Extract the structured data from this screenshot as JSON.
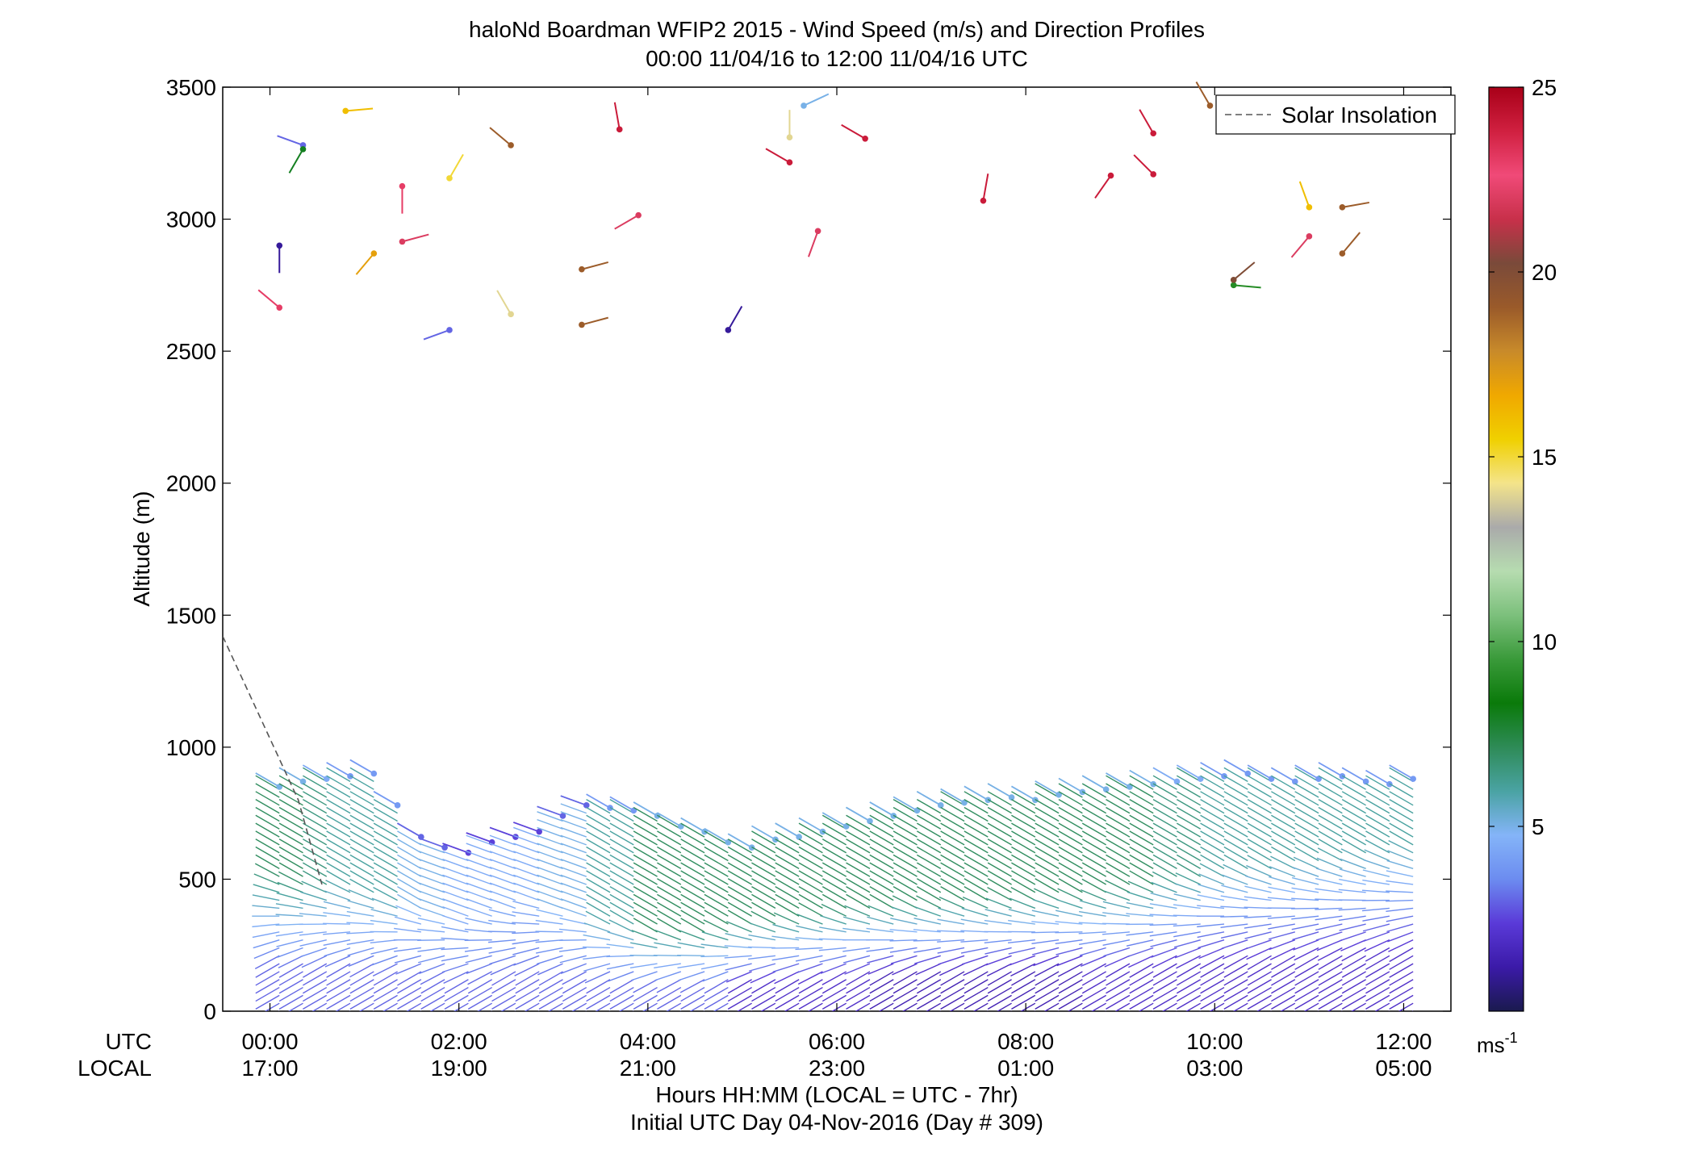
{
  "chart_data": {
    "type": "wind-barb-profile",
    "title": "haloNd Boardman WFIP2 2015 - Wind Speed (m/s) and Direction Profiles",
    "subtitle": "00:00 11/04/16 to 12:00 11/04/16  UTC",
    "ylabel": "Altitude (m)",
    "xlabel": "Hours HH:MM  (LOCAL = UTC - 7hr)",
    "footer": "Initial UTC Day 04-Nov-2016 (Day # 309)",
    "row_labels": {
      "utc": "UTC",
      "local": "LOCAL"
    },
    "xlim_hours": [
      -0.5,
      12.5
    ],
    "ylim": [
      0,
      3500
    ],
    "y_ticks": [
      "0",
      "500",
      "1000",
      "1500",
      "2000",
      "2500",
      "3000",
      "3500"
    ],
    "y_tick_values": [
      0,
      500,
      1000,
      1500,
      2000,
      2500,
      3000,
      3500
    ],
    "x_ticks_utc": [
      "00:00",
      "02:00",
      "04:00",
      "06:00",
      "08:00",
      "10:00",
      "12:00"
    ],
    "x_ticks_local": [
      "17:00",
      "19:00",
      "21:00",
      "23:00",
      "01:00",
      "03:00",
      "05:00"
    ],
    "x_tick_hours": [
      0,
      2,
      4,
      6,
      8,
      10,
      12
    ],
    "legend": {
      "label": "Solar Insolation",
      "position": "top-right"
    },
    "solar_insolation": {
      "x": [
        -0.5,
        0.3,
        0.55
      ],
      "y": [
        1420,
        800,
        480
      ]
    },
    "colorbar": {
      "min": 0,
      "max": 25,
      "ticks": [
        "5",
        "10",
        "15",
        "20",
        "25"
      ],
      "tick_values": [
        5,
        10,
        15,
        20,
        25
      ],
      "unit_label": "ms",
      "unit_exponent": "-1",
      "colors": [
        "#1a1a4e",
        "#3b1aa8",
        "#5a3ad8",
        "#6c8cf0",
        "#84b4f8",
        "#4aa3a3",
        "#2e8b57",
        "#0a7a0a",
        "#3a9a3a",
        "#7cc07c",
        "#b6dcb0",
        "#aaaaaa",
        "#f4e48a",
        "#f0d000",
        "#f0a800",
        "#c88a2a",
        "#9a5a2a",
        "#7a4a3a",
        "#c8304a",
        "#f04a78",
        "#d02040",
        "#a80018"
      ]
    },
    "profiles": {
      "start_hour": 0.1,
      "step_hour": 0.25,
      "count": 49,
      "level_step_m": 30,
      "tops_m": [
        850,
        870,
        880,
        890,
        900,
        780,
        660,
        620,
        600,
        640,
        660,
        680,
        740,
        780,
        770,
        760,
        740,
        700,
        680,
        640,
        620,
        650,
        660,
        680,
        700,
        720,
        740,
        760,
        780,
        790,
        800,
        810,
        800,
        820,
        830,
        840,
        850,
        860,
        870,
        880,
        890,
        900,
        880,
        870,
        880,
        890,
        870,
        860,
        880
      ],
      "low_speed": [
        3,
        3,
        3,
        3,
        3,
        3,
        3,
        3,
        3,
        3,
        3,
        3,
        3,
        3,
        3,
        3,
        3,
        3,
        3,
        3,
        2,
        2,
        2,
        2,
        2,
        2,
        1.5,
        1.5,
        1.5,
        1.5,
        1.5,
        1.5,
        1.5,
        1.5,
        1.5,
        2,
        2,
        2,
        2,
        2,
        2,
        2,
        2,
        2,
        2,
        2,
        2,
        2,
        2
      ],
      "transition_m": [
        400,
        380,
        370,
        360,
        350,
        330,
        300,
        280,
        260,
        280,
        300,
        320,
        300,
        280,
        260,
        240,
        230,
        230,
        230,
        240,
        250,
        260,
        270,
        280,
        290,
        300,
        300,
        310,
        310,
        320,
        320,
        330,
        330,
        340,
        340,
        350,
        360,
        370,
        380,
        390,
        400,
        410,
        420,
        430,
        440,
        450,
        460,
        470,
        480
      ],
      "upper_speed": [
        7,
        7,
        6.5,
        6,
        6,
        6,
        5,
        5,
        4.5,
        4.5,
        4.5,
        4.5,
        5,
        5,
        6,
        6,
        7,
        7,
        7,
        7,
        7,
        7,
        7,
        7,
        7,
        7,
        7,
        7,
        7,
        7,
        7,
        7,
        7,
        7,
        7,
        7,
        7,
        7,
        6.5,
        6.5,
        6,
        6,
        6,
        6,
        6,
        6,
        6,
        6,
        6
      ],
      "upper_direction_deg": [
        300,
        300,
        300,
        300,
        300,
        300,
        300,
        290,
        290,
        290,
        290,
        290,
        290,
        290,
        300,
        300,
        300,
        300,
        300,
        300,
        300,
        300,
        300,
        300,
        300,
        300,
        300,
        300,
        300,
        300,
        300,
        300,
        300,
        300,
        300,
        300,
        300,
        300,
        300,
        300,
        300,
        300,
        300,
        300,
        300,
        300,
        300,
        300,
        300
      ],
      "low_direction_deg": [
        240,
        240,
        240,
        240,
        240,
        240,
        240,
        240,
        240,
        240,
        240,
        240,
        240,
        240,
        240,
        240,
        240,
        240,
        240,
        240,
        240,
        240,
        240,
        240,
        240,
        240,
        240,
        240,
        240,
        240,
        240,
        240,
        240,
        240,
        240,
        240,
        240,
        240,
        240,
        240,
        240,
        240,
        240,
        240,
        240,
        240,
        240,
        240,
        240
      ]
    },
    "high_barbs": [
      {
        "hour": 0.1,
        "alt": 2900,
        "speed": 1,
        "dir": 180
      },
      {
        "hour": 0.1,
        "alt": 2665,
        "speed": 23,
        "dir": 310
      },
      {
        "hour": 0.35,
        "alt": 3280,
        "speed": 3,
        "dir": 290
      },
      {
        "hour": 0.35,
        "alt": 3265,
        "speed": 8,
        "dir": 210
      },
      {
        "hour": 0.8,
        "alt": 3410,
        "speed": 16,
        "dir": 85
      },
      {
        "hour": 1.4,
        "alt": 3125,
        "speed": 23,
        "dir": 180
      },
      {
        "hour": 1.4,
        "alt": 2915,
        "speed": 22,
        "dir": 75
      },
      {
        "hour": 1.1,
        "alt": 2870,
        "speed": 17,
        "dir": 220
      },
      {
        "hour": 1.9,
        "alt": 3155,
        "speed": 15,
        "dir": 30
      },
      {
        "hour": 1.9,
        "alt": 2580,
        "speed": 3,
        "dir": 250
      },
      {
        "hour": 2.55,
        "alt": 3280,
        "speed": 19,
        "dir": 310
      },
      {
        "hour": 2.55,
        "alt": 2640,
        "speed": 14,
        "dir": 330
      },
      {
        "hour": 3.3,
        "alt": 2810,
        "speed": 19,
        "dir": 75
      },
      {
        "hour": 3.3,
        "alt": 2600,
        "speed": 19,
        "dir": 75
      },
      {
        "hour": 3.7,
        "alt": 3340,
        "speed": 24,
        "dir": 350
      },
      {
        "hour": 3.9,
        "alt": 3015,
        "speed": 22,
        "dir": 240
      },
      {
        "hour": 4.85,
        "alt": 2580,
        "speed": 1,
        "dir": 30
      },
      {
        "hour": 5.65,
        "alt": 3430,
        "speed": 5,
        "dir": 65
      },
      {
        "hour": 5.5,
        "alt": 3310,
        "speed": 14,
        "dir": 0
      },
      {
        "hour": 5.5,
        "alt": 3215,
        "speed": 24,
        "dir": 300
      },
      {
        "hour": 5.8,
        "alt": 2955,
        "speed": 22,
        "dir": 200
      },
      {
        "hour": 6.3,
        "alt": 3305,
        "speed": 24,
        "dir": 300
      },
      {
        "hour": 7.55,
        "alt": 3070,
        "speed": 24,
        "dir": 10
      },
      {
        "hour": 8.9,
        "alt": 3165,
        "speed": 24,
        "dir": 215
      },
      {
        "hour": 9.35,
        "alt": 3325,
        "speed": 24,
        "dir": 330
      },
      {
        "hour": 9.35,
        "alt": 3170,
        "speed": 24,
        "dir": 315
      },
      {
        "hour": 9.95,
        "alt": 3430,
        "speed": 19,
        "dir": 330
      },
      {
        "hour": 10.2,
        "alt": 2750,
        "speed": 9,
        "dir": 95
      },
      {
        "hour": 10.2,
        "alt": 2770,
        "speed": 20,
        "dir": 50
      },
      {
        "hour": 11.0,
        "alt": 3045,
        "speed": 16,
        "dir": 340
      },
      {
        "hour": 11.0,
        "alt": 2935,
        "speed": 22,
        "dir": 220
      },
      {
        "hour": 11.35,
        "alt": 3045,
        "speed": 19,
        "dir": 80
      },
      {
        "hour": 11.35,
        "alt": 2870,
        "speed": 19,
        "dir": 40
      }
    ]
  }
}
